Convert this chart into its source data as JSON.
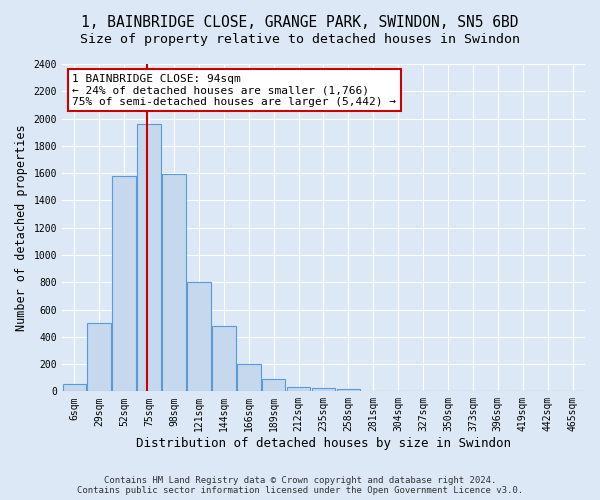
{
  "title_line1": "1, BAINBRIDGE CLOSE, GRANGE PARK, SWINDON, SN5 6BD",
  "title_line2": "Size of property relative to detached houses in Swindon",
  "xlabel": "Distribution of detached houses by size in Swindon",
  "ylabel": "Number of detached properties",
  "footer_line1": "Contains HM Land Registry data © Crown copyright and database right 2024.",
  "footer_line2": "Contains public sector information licensed under the Open Government Licence v3.0.",
  "categories": [
    "6sqm",
    "29sqm",
    "52sqm",
    "75sqm",
    "98sqm",
    "121sqm",
    "144sqm",
    "166sqm",
    "189sqm",
    "212sqm",
    "235sqm",
    "258sqm",
    "281sqm",
    "304sqm",
    "327sqm",
    "350sqm",
    "373sqm",
    "396sqm",
    "419sqm",
    "442sqm",
    "465sqm"
  ],
  "values": [
    55,
    500,
    1580,
    1960,
    1590,
    800,
    480,
    200,
    90,
    35,
    28,
    20,
    0,
    0,
    0,
    0,
    0,
    0,
    0,
    0,
    0
  ],
  "bar_color": "#c5d8ee",
  "bar_edge_color": "#5b9bd5",
  "red_line_color": "#cc0000",
  "annotation_text": "1 BAINBRIDGE CLOSE: 94sqm\n← 24% of detached houses are smaller (1,766)\n75% of semi-detached houses are larger (5,442) →",
  "annotation_box_bg": "white",
  "annotation_box_edge": "#cc0000",
  "red_line_bar_index": 3,
  "ylim": [
    0,
    2400
  ],
  "yticks": [
    0,
    200,
    400,
    600,
    800,
    1000,
    1200,
    1400,
    1600,
    1800,
    2000,
    2200,
    2400
  ],
  "background_color": "#dce8f5",
  "grid_color": "white",
  "title_fontsize": 10.5,
  "subtitle_fontsize": 9.5,
  "ylabel_fontsize": 8.5,
  "xlabel_fontsize": 9,
  "tick_fontsize": 7,
  "annotation_fontsize": 8,
  "footer_fontsize": 6.5
}
